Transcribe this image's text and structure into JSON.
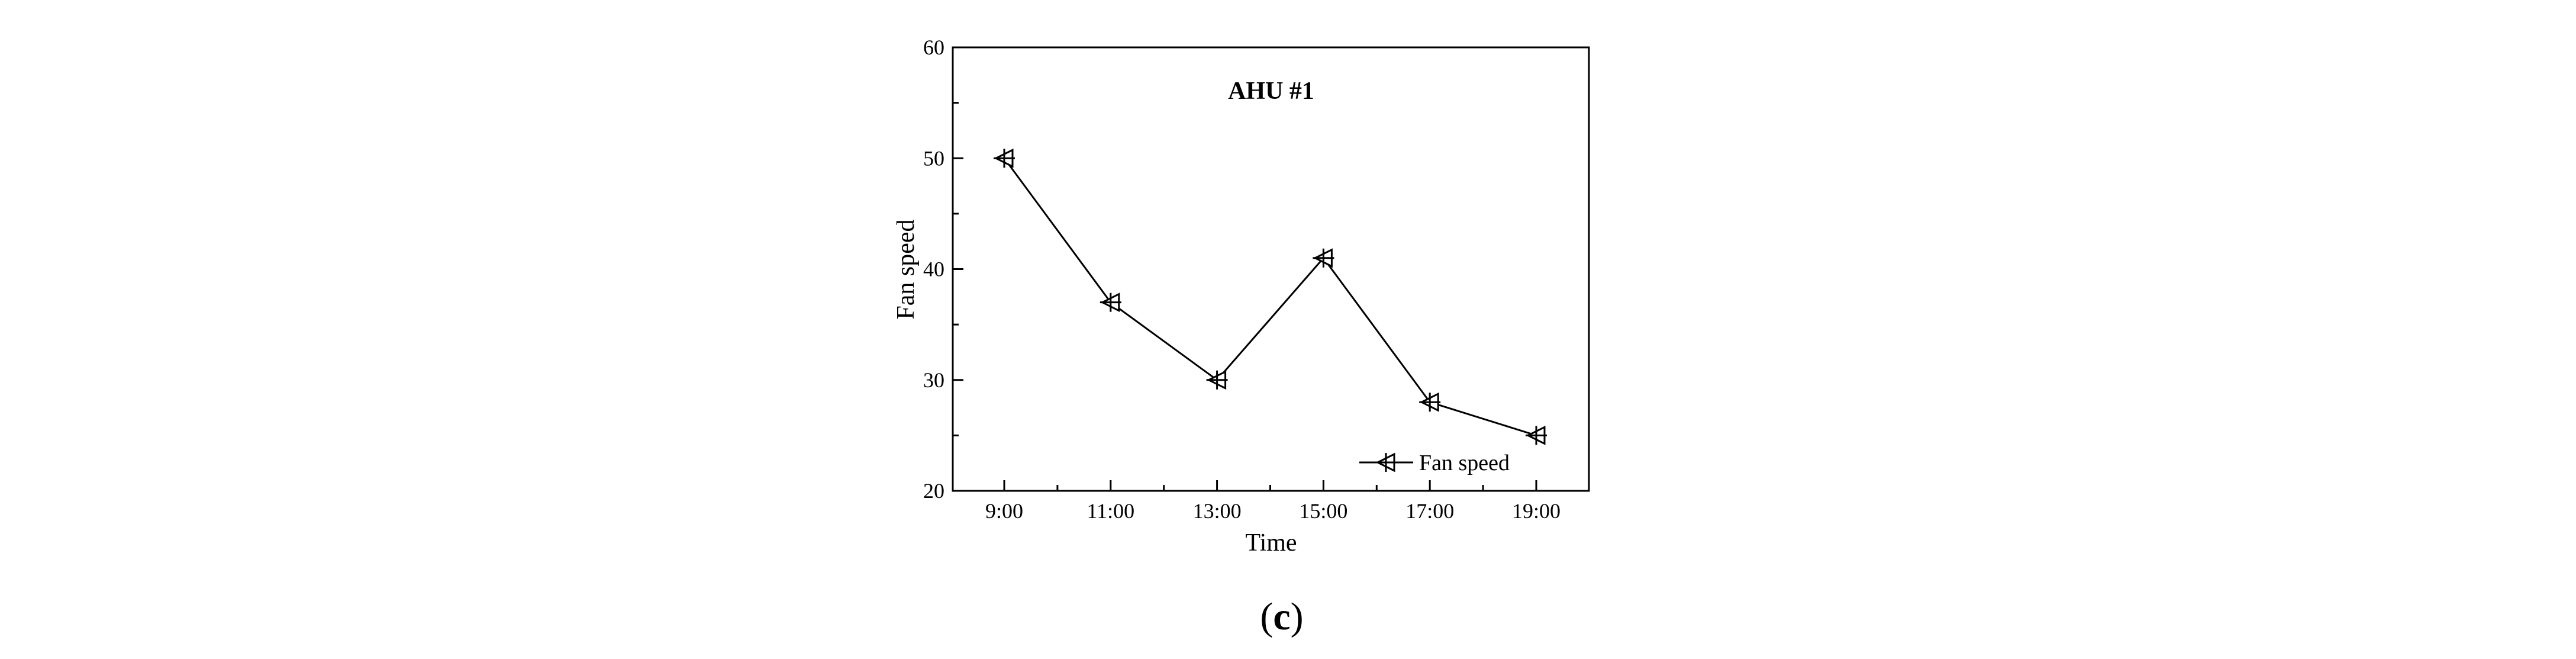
{
  "chart_data": {
    "type": "line",
    "title": "AHU #1",
    "xlabel": "Time",
    "ylabel": "Fan speed",
    "categories": [
      "9:00",
      "11:00",
      "13:00",
      "15:00",
      "17:00",
      "19:00"
    ],
    "series": [
      {
        "name": "Fan speed",
        "values": [
          50,
          37,
          30,
          41,
          28,
          25
        ],
        "marker": "left-triangle-cross",
        "color": "#000000"
      }
    ],
    "ylim": [
      20,
      60
    ],
    "yticks": [
      20,
      30,
      40,
      50,
      60
    ],
    "legend": {
      "position": "bottom-right",
      "label": "Fan speed"
    },
    "grid": false
  },
  "caption": {
    "open": "(",
    "letter": "c",
    "close": ")"
  }
}
